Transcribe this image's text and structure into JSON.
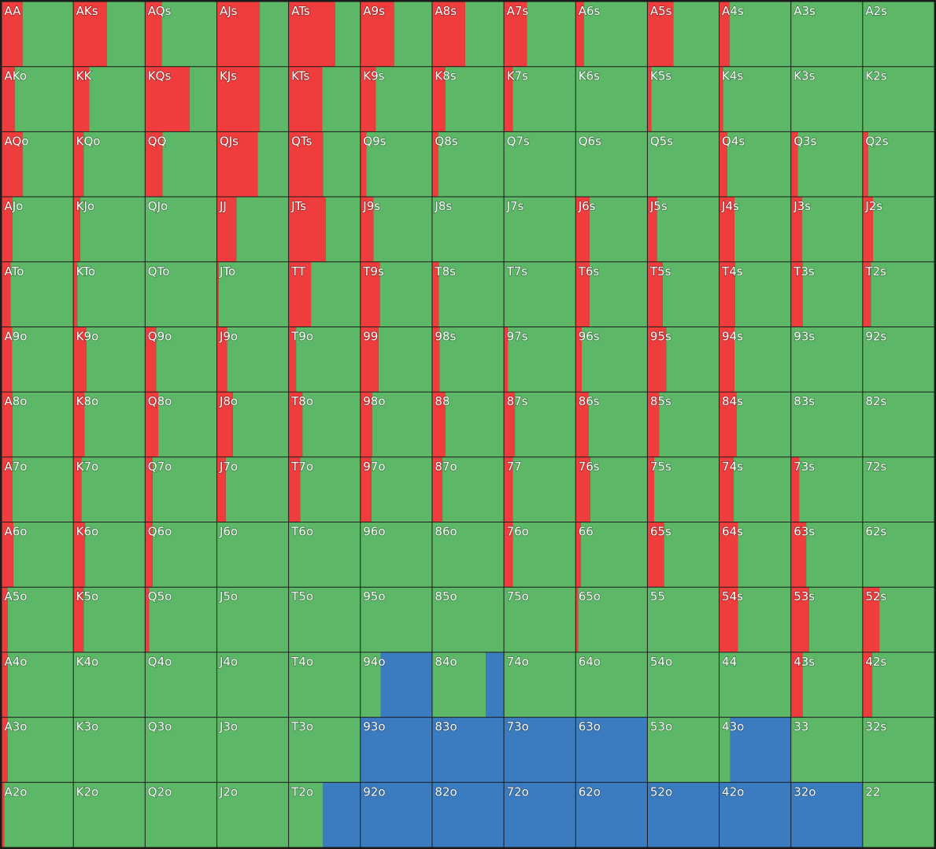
{
  "grid": {
    "labels": [
      [
        "AA",
        "AKs",
        "AQs",
        "AJs",
        "ATs",
        "A9s",
        "A8s",
        "A7s",
        "A6s",
        "A5s",
        "A4s",
        "A3s",
        "A2s"
      ],
      [
        "AKo",
        "KK",
        "KQs",
        "KJs",
        "KTs",
        "K9s",
        "K8s",
        "K7s",
        "K6s",
        "K5s",
        "K4s",
        "K3s",
        "K2s"
      ],
      [
        "AQo",
        "KQo",
        "QQ",
        "QJs",
        "QTs",
        "Q9s",
        "Q8s",
        "Q7s",
        "Q6s",
        "Q5s",
        "Q4s",
        "Q3s",
        "Q2s"
      ],
      [
        "AJo",
        "KJo",
        "QJo",
        "JJ",
        "JTs",
        "J9s",
        "J8s",
        "J7s",
        "J6s",
        "J5s",
        "J4s",
        "J3s",
        "J2s"
      ],
      [
        "ATo",
        "KTo",
        "QTo",
        "JTo",
        "TT",
        "T9s",
        "T8s",
        "T7s",
        "T6s",
        "T5s",
        "T4s",
        "T3s",
        "T2s"
      ],
      [
        "A9o",
        "K9o",
        "Q9o",
        "J9o",
        "T9o",
        "99",
        "98s",
        "97s",
        "96s",
        "95s",
        "94s",
        "93s",
        "92s"
      ],
      [
        "A8o",
        "K8o",
        "Q8o",
        "J8o",
        "T8o",
        "98o",
        "88",
        "87s",
        "86s",
        "85s",
        "84s",
        "83s",
        "82s"
      ],
      [
        "A7o",
        "K7o",
        "Q7o",
        "J7o",
        "T7o",
        "97o",
        "87o",
        "77",
        "76s",
        "75s",
        "74s",
        "73s",
        "72s"
      ],
      [
        "A6o",
        "K6o",
        "Q6o",
        "J6o",
        "T6o",
        "96o",
        "86o",
        "76o",
        "66",
        "65s",
        "64s",
        "63s",
        "62s"
      ],
      [
        "A5o",
        "K5o",
        "Q5o",
        "J5o",
        "T5o",
        "95o",
        "85o",
        "75o",
        "65o",
        "55",
        "54s",
        "53s",
        "52s"
      ],
      [
        "A4o",
        "K4o",
        "Q4o",
        "J4o",
        "T4o",
        "94o",
        "84o",
        "74o",
        "64o",
        "54o",
        "44",
        "43s",
        "42s"
      ],
      [
        "A3o",
        "K3o",
        "Q3o",
        "J3o",
        "T3o",
        "93o",
        "83o",
        "73o",
        "63o",
        "53o",
        "43o",
        "33",
        "32s"
      ],
      [
        "A2o",
        "K2o",
        "Q2o",
        "J2o",
        "T2o",
        "92o",
        "82o",
        "72o",
        "62o",
        "52o",
        "42o",
        "32o",
        "22"
      ]
    ],
    "raise": [
      [
        29,
        47,
        23,
        60,
        65,
        47,
        46,
        32,
        11,
        36,
        14,
        0,
        0
      ],
      [
        18,
        22,
        62,
        60,
        47,
        21,
        18,
        12,
        0,
        5,
        5,
        0,
        0
      ],
      [
        29,
        14,
        24,
        57,
        48,
        8,
        8,
        0,
        0,
        0,
        11,
        9,
        7
      ],
      [
        15,
        9,
        0,
        27,
        52,
        18,
        0,
        0,
        19,
        13,
        21,
        15,
        14
      ],
      [
        12,
        5,
        0,
        2,
        31,
        27,
        9,
        0,
        19,
        21,
        22,
        16,
        11
      ],
      [
        14,
        18,
        15,
        14,
        10,
        25,
        10,
        5,
        8,
        26,
        21,
        0,
        0
      ],
      [
        15,
        15,
        18,
        22,
        19,
        16,
        18,
        15,
        18,
        16,
        24,
        0,
        0
      ],
      [
        15,
        11,
        10,
        12,
        16,
        15,
        14,
        12,
        20,
        9,
        20,
        11,
        0
      ],
      [
        16,
        16,
        10,
        0,
        0,
        0,
        0,
        12,
        7,
        23,
        26,
        21,
        0
      ],
      [
        8,
        14,
        5,
        0,
        0,
        0,
        0,
        0,
        3,
        0,
        26,
        25,
        23
      ],
      [
        8,
        0,
        0,
        0,
        0,
        0,
        0,
        0,
        0,
        0,
        0,
        16,
        13
      ],
      [
        8,
        0,
        0,
        0,
        0,
        0,
        0,
        0,
        0,
        0,
        0,
        0,
        0
      ],
      [
        3,
        0,
        0,
        0,
        0,
        0,
        0,
        0,
        0,
        0,
        0,
        0,
        0
      ]
    ],
    "call": [
      [
        71,
        53,
        77,
        40,
        35,
        53,
        54,
        68,
        89,
        64,
        86,
        100,
        100
      ],
      [
        82,
        78,
        38,
        40,
        53,
        79,
        82,
        88,
        100,
        95,
        95,
        100,
        100
      ],
      [
        71,
        86,
        76,
        43,
        52,
        92,
        92,
        100,
        100,
        100,
        89,
        91,
        93
      ],
      [
        85,
        91,
        100,
        73,
        48,
        82,
        100,
        100,
        81,
        87,
        79,
        85,
        86
      ],
      [
        88,
        95,
        100,
        98,
        69,
        73,
        91,
        100,
        81,
        79,
        78,
        84,
        89
      ],
      [
        86,
        82,
        85,
        86,
        90,
        75,
        90,
        95,
        92,
        74,
        79,
        100,
        100
      ],
      [
        85,
        85,
        82,
        78,
        81,
        84,
        82,
        85,
        82,
        84,
        76,
        100,
        100
      ],
      [
        85,
        89,
        90,
        88,
        84,
        85,
        86,
        88,
        80,
        91,
        80,
        89,
        100
      ],
      [
        84,
        84,
        90,
        100,
        100,
        100,
        100,
        88,
        93,
        77,
        74,
        79,
        100
      ],
      [
        92,
        86,
        95,
        100,
        100,
        100,
        100,
        100,
        97,
        100,
        74,
        75,
        77
      ],
      [
        92,
        100,
        100,
        100,
        100,
        28,
        75,
        100,
        100,
        100,
        100,
        84,
        87
      ],
      [
        92,
        100,
        100,
        100,
        100,
        0,
        0,
        0,
        0,
        100,
        15,
        100,
        100
      ],
      [
        97,
        100,
        100,
        100,
        48,
        0,
        0,
        0,
        0,
        0,
        0,
        0,
        100
      ]
    ],
    "fold": [
      [
        0,
        0,
        0,
        0,
        0,
        0,
        0,
        0,
        0,
        0,
        0,
        0,
        0
      ],
      [
        0,
        0,
        0,
        0,
        0,
        0,
        0,
        0,
        0,
        0,
        0,
        0,
        0
      ],
      [
        0,
        0,
        0,
        0,
        0,
        0,
        0,
        0,
        0,
        0,
        0,
        0,
        0
      ],
      [
        0,
        0,
        0,
        0,
        0,
        0,
        0,
        0,
        0,
        0,
        0,
        0,
        0
      ],
      [
        0,
        0,
        0,
        0,
        0,
        0,
        0,
        0,
        0,
        0,
        0,
        0,
        0
      ],
      [
        0,
        0,
        0,
        0,
        0,
        0,
        0,
        0,
        0,
        0,
        0,
        0,
        0
      ],
      [
        0,
        0,
        0,
        0,
        0,
        0,
        0,
        0,
        0,
        0,
        0,
        0,
        0
      ],
      [
        0,
        0,
        0,
        0,
        0,
        0,
        0,
        0,
        0,
        0,
        0,
        0,
        0
      ],
      [
        0,
        0,
        0,
        0,
        0,
        0,
        0,
        0,
        0,
        0,
        0,
        0,
        0
      ],
      [
        0,
        0,
        0,
        0,
        0,
        0,
        0,
        0,
        0,
        0,
        0,
        0,
        0
      ],
      [
        0,
        0,
        0,
        0,
        0,
        72,
        25,
        0,
        0,
        0,
        0,
        0,
        0
      ],
      [
        0,
        0,
        0,
        0,
        0,
        100,
        100,
        100,
        100,
        0,
        85,
        0,
        0
      ],
      [
        0,
        0,
        0,
        0,
        52,
        100,
        100,
        100,
        100,
        100,
        100,
        100,
        0
      ]
    ]
  }
}
